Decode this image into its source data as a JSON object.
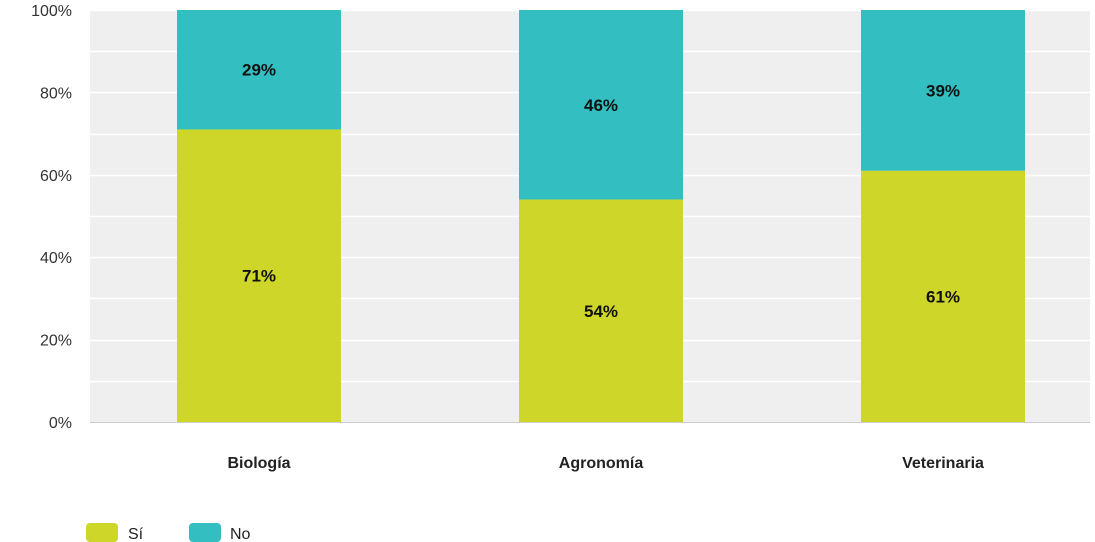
{
  "chart_data": {
    "type": "bar",
    "stacked": true,
    "percent_stacked": true,
    "categories": [
      "Biología",
      "Agronomía",
      "Veterinaria"
    ],
    "series": [
      {
        "name": "Sí",
        "values": [
          71,
          54,
          61
        ],
        "labels": [
          "71%",
          "54%",
          "61%"
        ],
        "color": "#cfd62a"
      },
      {
        "name": "No",
        "values": [
          29,
          46,
          39
        ],
        "labels": [
          "29%",
          "46%",
          "39%"
        ],
        "color": "#33bfc2"
      }
    ],
    "y_ticks": [
      0,
      20,
      40,
      60,
      80,
      100
    ],
    "y_tick_labels": [
      "0%",
      "20%",
      "40%",
      "60%",
      "80%",
      "100%"
    ],
    "ylim": [
      0,
      100
    ],
    "grid": true,
    "legend": "bottom-left",
    "plot_background": "#efefef"
  }
}
